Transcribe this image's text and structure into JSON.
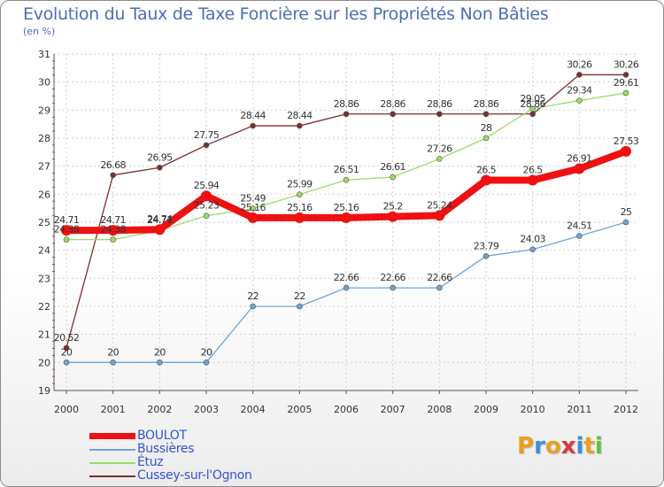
{
  "title": "Evolution du Taux de Taxe Foncière sur les Propriétés Non Bâties",
  "unit": "(en %)",
  "logo": {
    "text": "Proxiti",
    "letters": [
      "P",
      "r",
      "o",
      "x",
      "i",
      "t",
      "i"
    ],
    "colors": [
      "#e8a020",
      "#3a8fd8",
      "#e8a020",
      "#d83a3a",
      "#3a8fd8",
      "#e8a020",
      "#6bbf3a"
    ]
  },
  "chart_data": {
    "type": "line",
    "title": "Evolution du Taux de Taxe Foncière sur les Propriétés Non Bâties",
    "ylabel": "(en %)",
    "xlabel": "",
    "x": [
      "2000",
      "2001",
      "2002",
      "2003",
      "2004",
      "2005",
      "2006",
      "2007",
      "2008",
      "2009",
      "2010",
      "2011",
      "2012"
    ],
    "ylim": [
      19,
      31
    ],
    "yticks": [
      "19",
      "20",
      "21",
      "22",
      "23",
      "24",
      "25",
      "26",
      "27",
      "28",
      "29",
      "30",
      "31"
    ],
    "grid": true,
    "series": [
      {
        "name": "BOULOT",
        "color": "#ee1111",
        "values": [
          24.71,
          24.71,
          24.74,
          25.94,
          25.16,
          25.16,
          25.16,
          25.2,
          25.24,
          26.5,
          26.5,
          26.91,
          27.53
        ],
        "labels": [
          "24.71",
          "24.71",
          "24.74",
          "25.94",
          "25.16",
          "25.16",
          "25.16",
          "25.2",
          "25.24",
          "26.5",
          "26.5",
          "26.91",
          "27.53"
        ]
      },
      {
        "name": "Bussières",
        "color": "#6fa3d6",
        "values": [
          20,
          20,
          20,
          20,
          22,
          22,
          22.66,
          22.66,
          22.66,
          23.79,
          24.03,
          24.51,
          25
        ],
        "labels": [
          "20",
          "20",
          "20",
          "20",
          "22",
          "22",
          "22.66",
          "22.66",
          "22.66",
          "23.79",
          "24.03",
          "24.51",
          "25"
        ]
      },
      {
        "name": "Étuz",
        "color": "#99dd66",
        "values": [
          24.38,
          24.38,
          24.71,
          25.23,
          25.49,
          25.99,
          26.51,
          26.61,
          27.26,
          28,
          29.05,
          29.34,
          29.61
        ],
        "labels": [
          "24.38",
          "24.38",
          "24.71",
          "25.23",
          "25.49",
          "25.99",
          "26.51",
          "26.61",
          "27.26",
          "28",
          "29.05",
          "29.34",
          "29.61"
        ]
      },
      {
        "name": "Cussey-sur-l'Ognon",
        "color": "#7a2f2f",
        "values": [
          20.52,
          26.68,
          26.95,
          27.75,
          28.44,
          28.44,
          28.86,
          28.86,
          28.86,
          28.86,
          28.86,
          30.26,
          30.26
        ],
        "labels": [
          "20.52",
          "26.68",
          "26.95",
          "27.75",
          "28.44",
          "28.44",
          "28.86",
          "28.86",
          "28.86",
          "28.86",
          "28.86",
          "30.26",
          "30.26"
        ]
      }
    ]
  }
}
